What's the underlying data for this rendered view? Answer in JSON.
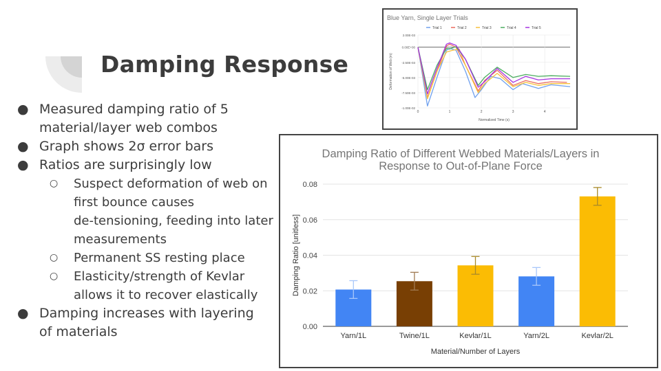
{
  "slide": {
    "title": "Damping Response",
    "bullets": [
      {
        "level": 1,
        "lines": [
          "Measured damping ratio of 5",
          "material/layer web combos"
        ]
      },
      {
        "level": 1,
        "lines": [
          "Graph shows 2σ error bars"
        ]
      },
      {
        "level": 1,
        "lines": [
          "Ratios are surprisingly low"
        ]
      },
      {
        "level": 2,
        "lines": [
          "Suspect deformation of web on",
          "first bounce causes",
          "de-tensioning, feeding into later",
          "measurements"
        ]
      },
      {
        "level": 2,
        "lines": [
          "Permanent SS resting place"
        ]
      },
      {
        "level": 2,
        "lines": [
          "Elasticity/strength of Kevlar",
          "allows it to recover elastically"
        ]
      },
      {
        "level": 1,
        "lines": [
          "Damping increases with layering",
          "of materials"
        ]
      }
    ],
    "bullet_glyphs": {
      "level1": "●",
      "level2": "○"
    }
  },
  "chart_data": [
    {
      "type": "line",
      "title": "Blue Yarn, Single Layer Trials",
      "xlabel": "Normalized Time (s)",
      "ylabel": "Deformation of Web (m)",
      "xlim": [
        0,
        4.8
      ],
      "ylim": [
        -0.01,
        0.002
      ],
      "xticks": [
        "0",
        "1",
        "2",
        "3",
        "4"
      ],
      "xtick_values": [
        0,
        1,
        2,
        3,
        4
      ],
      "yticks": [
        "2.00E-03",
        "0.00E+00",
        "-2.50E-03",
        "-5.00E-03",
        "-7.50E-03",
        "-1.00E-02"
      ],
      "ytick_values": [
        0.002,
        0,
        -0.0025,
        -0.005,
        -0.0075,
        -0.01
      ],
      "legend_position": "top",
      "grid": true,
      "series": [
        {
          "name": "Trial 1",
          "color": "#6fa0ee",
          "x": [
            0,
            0.3,
            0.6,
            0.9,
            1.0,
            1.2,
            1.5,
            1.8,
            2.0,
            2.3,
            2.6,
            3.0,
            3.3,
            3.8,
            4.2,
            4.8
          ],
          "y": [
            0,
            -0.0097,
            -0.005,
            -0.0005,
            -0.0002,
            -0.0005,
            -0.004,
            -0.0083,
            -0.007,
            -0.0048,
            -0.0052,
            -0.007,
            -0.006,
            -0.0068,
            -0.0062,
            -0.0065
          ]
        },
        {
          "name": "Trial 2",
          "color": "#ea6b5e",
          "x": [
            0,
            0.3,
            0.6,
            0.9,
            1.0,
            1.2,
            1.5,
            1.9,
            2.1,
            2.5,
            3.0,
            3.4,
            3.8,
            4.2,
            4.7
          ],
          "y": [
            0,
            -0.0083,
            -0.004,
            0.0002,
            0.0005,
            0,
            -0.003,
            -0.0072,
            -0.0055,
            -0.0038,
            -0.0063,
            -0.0055,
            -0.006,
            -0.0057,
            -0.0058
          ]
        },
        {
          "name": "Trial 3",
          "color": "#f7c13b",
          "x": [
            0,
            0.3,
            0.6,
            0.9,
            1.1,
            1.3,
            1.5,
            1.9,
            2.1,
            2.5,
            3.0,
            3.4,
            3.8,
            4.2,
            4.8
          ],
          "y": [
            0,
            -0.0085,
            -0.004,
            -0.0008,
            -0.0005,
            -0.0003,
            -0.003,
            -0.0075,
            -0.006,
            -0.0043,
            -0.0065,
            -0.0058,
            -0.0063,
            -0.006,
            -0.006
          ]
        },
        {
          "name": "Trial 4",
          "color": "#4cae60",
          "x": [
            0,
            0.3,
            0.6,
            0.9,
            1.0,
            1.2,
            1.5,
            1.9,
            2.1,
            2.5,
            3.0,
            3.4,
            3.8,
            4.2,
            4.8
          ],
          "y": [
            0,
            -0.007,
            -0.003,
            -0.0002,
            -0.0003,
            0.0001,
            -0.002,
            -0.0063,
            -0.005,
            -0.0033,
            -0.005,
            -0.0045,
            -0.0048,
            -0.0047,
            -0.0048
          ]
        },
        {
          "name": "Trial 5",
          "color": "#a533e0",
          "x": [
            0,
            0.3,
            0.6,
            0.9,
            1.0,
            1.2,
            1.5,
            1.9,
            2.1,
            2.5,
            3.0,
            3.4,
            3.8,
            4.2,
            4.8
          ],
          "y": [
            0,
            -0.0077,
            -0.0035,
            0.0005,
            0.0007,
            0.0003,
            -0.002,
            -0.0066,
            -0.0057,
            -0.0035,
            -0.0058,
            -0.0048,
            -0.0054,
            -0.0052,
            -0.0052
          ]
        }
      ]
    },
    {
      "type": "bar",
      "title": "Damping Ratio of Different Webbed Materials/Layers in",
      "title_line2": "Response to Out-of-Plane Force",
      "xlabel": "Material/Number of Layers",
      "ylabel": "Damping Ratio [unitless]",
      "ylim": [
        0,
        0.08
      ],
      "yticks": [
        "0.00",
        "0.02",
        "0.04",
        "0.06",
        "0.08"
      ],
      "ytick_values": [
        0,
        0.02,
        0.04,
        0.06,
        0.08
      ],
      "categories": [
        "Yarn/1L",
        "Twine/1L",
        "Kevlar/1L",
        "Yarn/2L",
        "Kevlar/2L"
      ],
      "values": [
        0.0207,
        0.0254,
        0.0343,
        0.0281,
        0.0731
      ],
      "error": [
        0.005,
        0.005,
        0.005,
        0.005,
        0.005
      ],
      "colors": [
        "#4285f4",
        "#783f04",
        "#fbbc04",
        "#4285f4",
        "#fbbc04"
      ],
      "error_colors": [
        "#a8c7fa",
        "#a07a52",
        "#a88a2a",
        "#a8c7fa",
        "#a88a2a"
      ],
      "grid": true
    }
  ]
}
